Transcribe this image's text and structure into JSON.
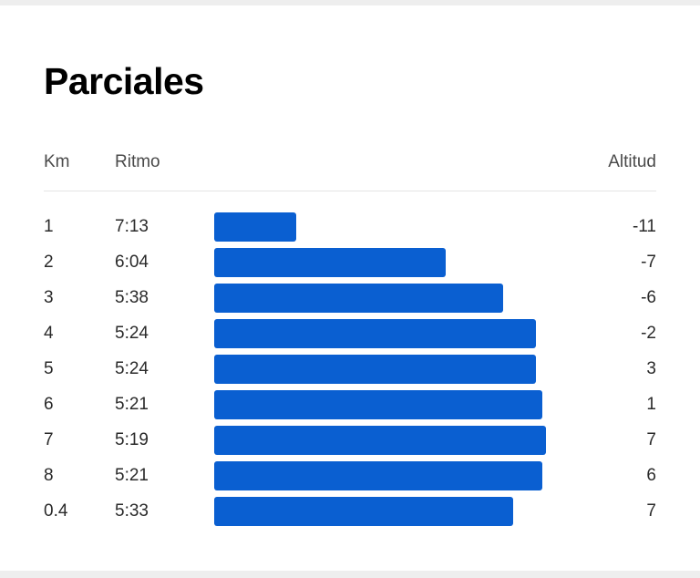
{
  "title": "Parciales",
  "columns": {
    "km": "Km",
    "pace": "Ritmo",
    "altitude": "Altitud"
  },
  "colors": {
    "bar": "#0a5fd1"
  },
  "splits": [
    {
      "km": "1",
      "pace": "7:13",
      "altitude": "-11",
      "bar_fraction": 0.248
    },
    {
      "km": "2",
      "pace": "6:04",
      "altitude": "-7",
      "bar_fraction": 0.699
    },
    {
      "km": "3",
      "pace": "5:38",
      "altitude": "-6",
      "bar_fraction": 0.87
    },
    {
      "km": "4",
      "pace": "5:24",
      "altitude": "-2",
      "bar_fraction": 0.97
    },
    {
      "km": "5",
      "pace": "5:24",
      "altitude": "3",
      "bar_fraction": 0.97
    },
    {
      "km": "6",
      "pace": "5:21",
      "altitude": "1",
      "bar_fraction": 0.989
    },
    {
      "km": "7",
      "pace": "5:19",
      "altitude": "7",
      "bar_fraction": 1.0
    },
    {
      "km": "8",
      "pace": "5:21",
      "altitude": "6",
      "bar_fraction": 0.989
    },
    {
      "km": "0.4",
      "pace": "5:33",
      "altitude": "7",
      "bar_fraction": 0.9
    }
  ]
}
